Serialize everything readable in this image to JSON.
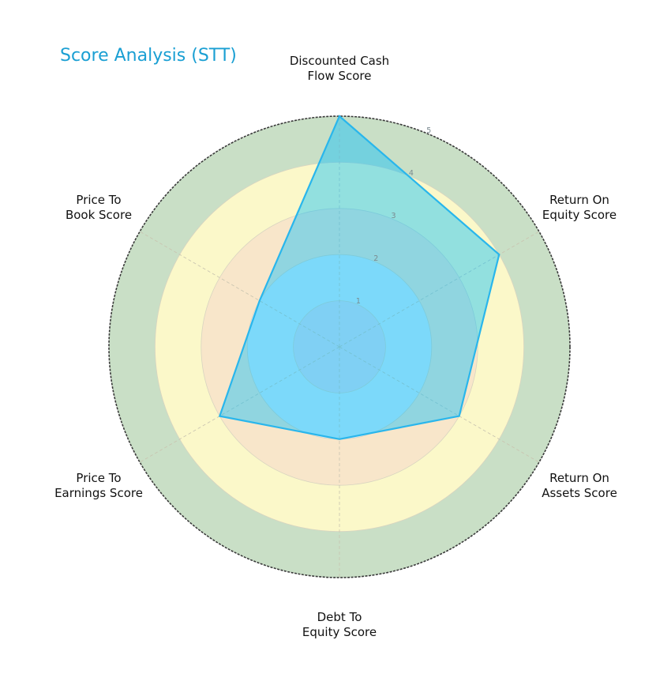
{
  "title": "Score Analysis (STT)",
  "chart_data": {
    "type": "radar",
    "title": "Score Analysis (STT)",
    "categories": [
      "Discounted Cash Flow Score",
      "Return On Equity Score",
      "Return On Assets Score",
      "Debt To Equity Score",
      "Price To Earnings Score",
      "Price To Book Score"
    ],
    "series": [
      {
        "name": "STT",
        "values": [
          5,
          4,
          3,
          2,
          3,
          2
        ]
      }
    ],
    "rlim": [
      0,
      5
    ],
    "r_ticks": [
      1,
      2,
      3,
      4,
      5
    ],
    "grid": true,
    "legend": "none",
    "bands": [
      {
        "from": 4,
        "to": 5,
        "color": "#c9dfc6"
      },
      {
        "from": 3,
        "to": 4,
        "color": "#fbf8c9"
      },
      {
        "from": 2,
        "to": 3,
        "color": "#f8e6ca"
      },
      {
        "from": 1,
        "to": 2,
        "color": "#d6ecf7"
      },
      {
        "from": 0,
        "to": 1,
        "color": "#dcdcec"
      }
    ],
    "line_color": "#29b6ec",
    "fill_color": "#00bfff",
    "fill_opacity": 0.42
  },
  "labels": {
    "dcf": [
      "Discounted Cash",
      "Flow Score"
    ],
    "roe": [
      "Return On",
      "Equity Score"
    ],
    "roa": [
      "Return On",
      "Assets Score"
    ],
    "de": [
      "Debt To",
      "Equity Score"
    ],
    "pe": [
      "Price To",
      "Earnings Score"
    ],
    "pb": [
      "Price To",
      "Book Score"
    ]
  },
  "ticks": [
    "1",
    "2",
    "3",
    "4",
    "5"
  ]
}
